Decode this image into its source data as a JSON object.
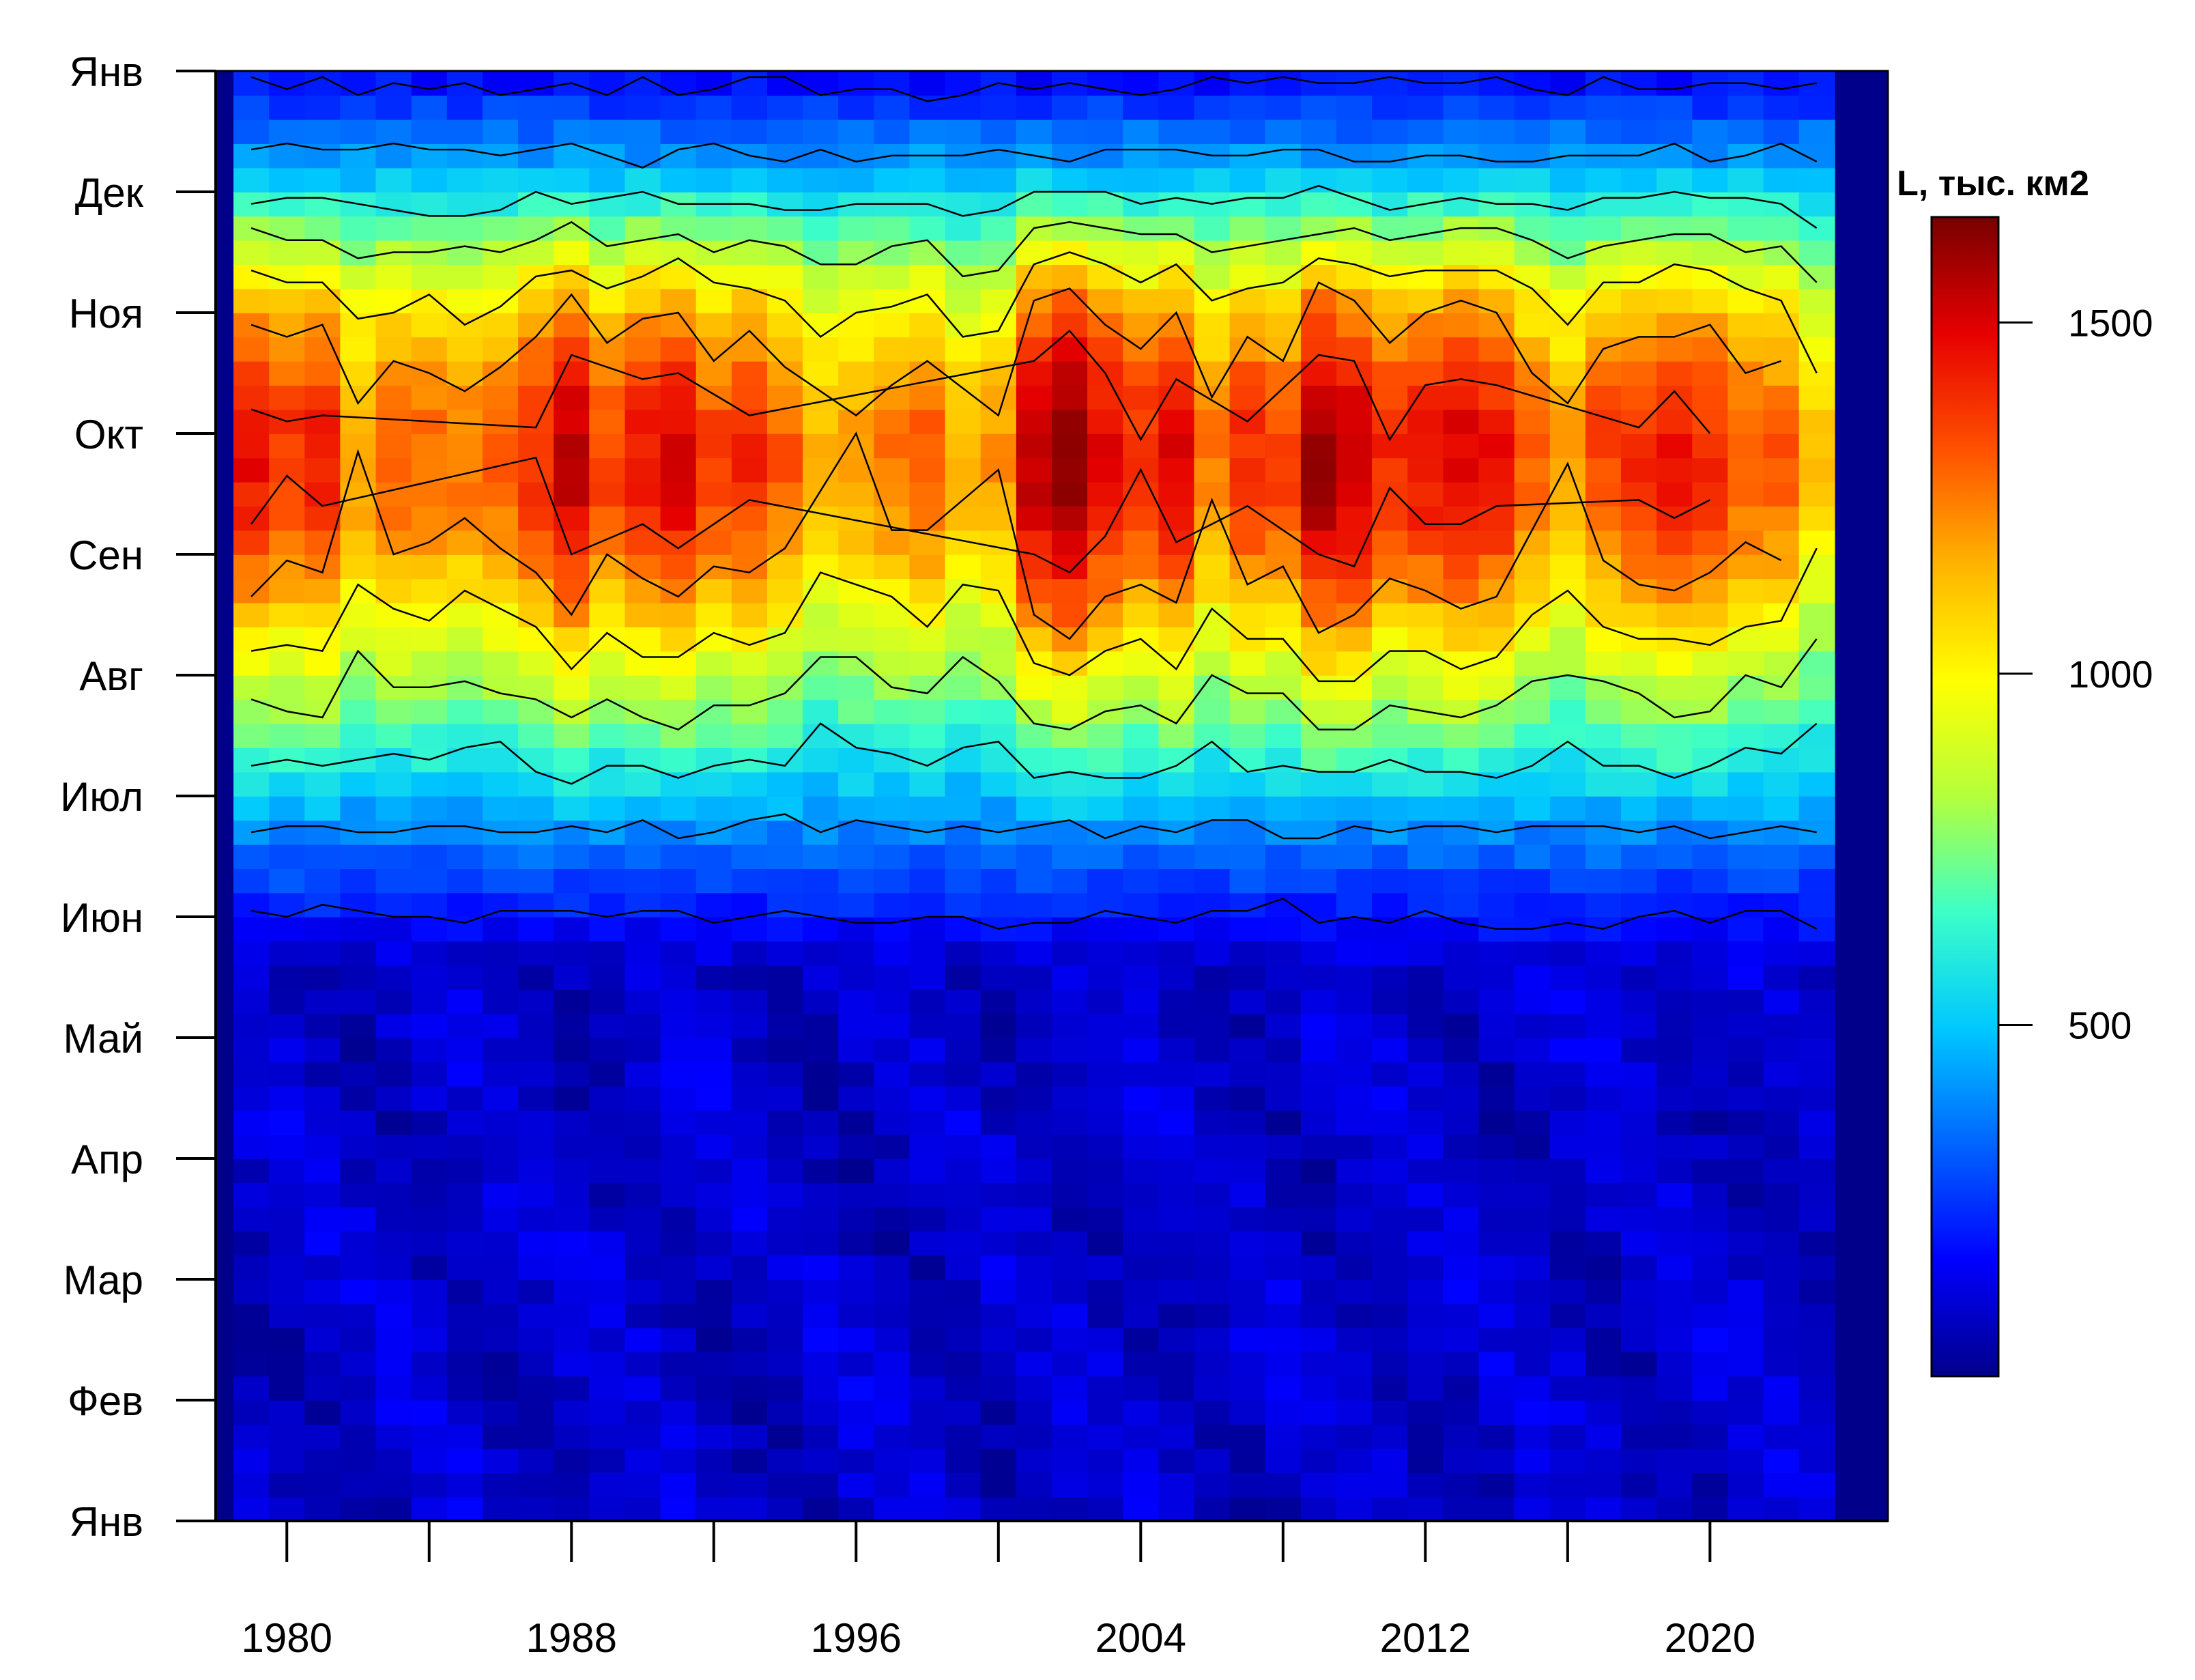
{
  "chart_data": {
    "type": "heatmap",
    "title": "",
    "xlabel": "",
    "ylabel": "",
    "x_axis": {
      "range": [
        1978,
        2025
      ],
      "ticks": [
        1980,
        1984,
        1988,
        1992,
        1996,
        2000,
        2004,
        2008,
        2012,
        2016,
        2020
      ],
      "tick_labels": [
        "1980",
        "1988",
        "1996",
        "2004",
        "2012",
        "2020"
      ]
    },
    "y_axis": {
      "range": [
        0,
        12
      ],
      "tick_labels": [
        "Янв",
        "Фев",
        "Мар",
        "Апр",
        "Май",
        "Июн",
        "Июл",
        "Авг",
        "Сен",
        "Окт",
        "Ноя",
        "Дек",
        "Янв"
      ]
    },
    "colorbar": {
      "title": "L, тыс. км2",
      "range": [
        0,
        1650
      ],
      "ticks": [
        500,
        1000,
        1500
      ],
      "tick_labels": [
        "500",
        "1000",
        "1500"
      ],
      "colors": [
        "#00008b",
        "#0000ff",
        "#0064ff",
        "#00c8ff",
        "#3cffc8",
        "#b4ff3c",
        "#ffff00",
        "#ffb400",
        "#ff5000",
        "#e60000",
        "#780000"
      ]
    },
    "contour_levels": [
      200,
      400,
      600,
      800,
      1000,
      1200,
      1400
    ],
    "data_years": [
      1979,
      1980,
      1981,
      1982,
      1983,
      1984,
      1985,
      1986,
      1987,
      1988,
      1989,
      1990,
      1991,
      1992,
      1993,
      1994,
      1995,
      1996,
      1997,
      1998,
      1999,
      2000,
      2001,
      2002,
      2003,
      2004,
      2005,
      2006,
      2007,
      2008,
      2009,
      2010,
      2011,
      2012,
      2013,
      2014,
      2015,
      2016,
      2017,
      2018,
      2019,
      2020,
      2021,
      2022,
      2023
    ],
    "annual_peak_values": [
      1450,
      1380,
      1420,
      1200,
      1300,
      1280,
      1250,
      1300,
      1400,
      1550,
      1350,
      1450,
      1500,
      1350,
      1400,
      1300,
      1150,
      1200,
      1250,
      1300,
      1150,
      1200,
      1550,
      1650,
      1500,
      1400,
      1500,
      1250,
      1400,
      1350,
      1600,
      1550,
      1400,
      1450,
      1500,
      1450,
      1300,
      1200,
      1350,
      1400,
      1450,
      1400,
      1300,
      1300,
      1100
    ]
  }
}
